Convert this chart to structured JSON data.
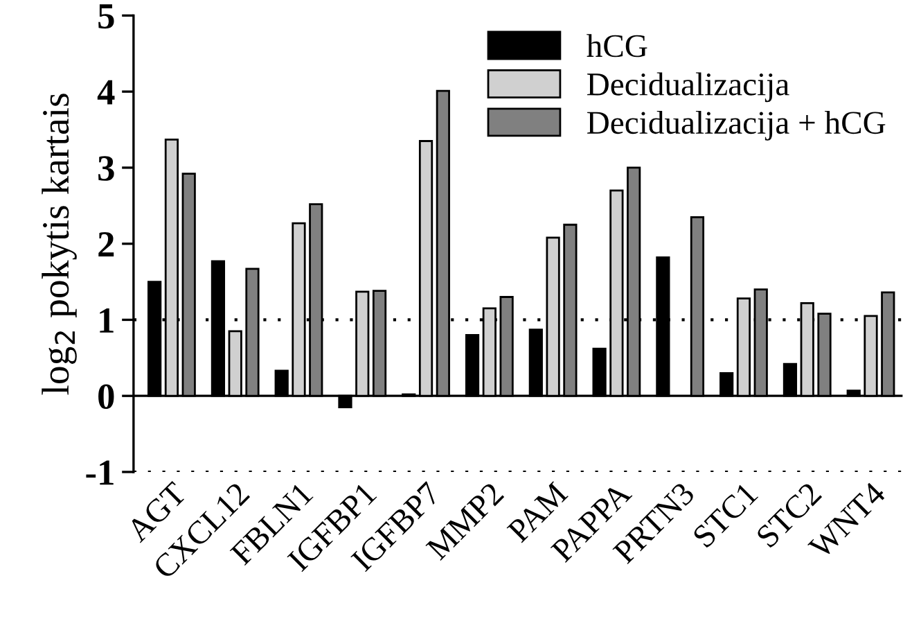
{
  "chart_data": {
    "type": "bar",
    "ylabel": "log$_{2}$ pokytis kartais",
    "categories": [
      "AGT",
      "CXCL12",
      "FBLN1",
      "IGFBP1",
      "IGFBP7",
      "MMP2",
      "PAM",
      "PAPPA",
      "PRTN3",
      "STC1",
      "STC2",
      "WNT4"
    ],
    "series": [
      {
        "name": "hCG",
        "color": "#000000",
        "values": [
          1.5,
          1.77,
          0.33,
          -0.15,
          0.02,
          0.8,
          0.87,
          0.62,
          1.82,
          0.3,
          0.42,
          0.07
        ]
      },
      {
        "name": "Decidualizacija",
        "color": "#d0d0d0",
        "values": [
          3.37,
          0.85,
          2.27,
          1.37,
          3.35,
          1.15,
          2.08,
          2.7,
          null,
          1.28,
          1.22,
          1.05
        ]
      },
      {
        "name": "Decidualizacija + hCG",
        "color": "#808080",
        "values": [
          2.92,
          1.67,
          2.52,
          1.38,
          4.01,
          1.3,
          2.25,
          3.0,
          2.35,
          1.4,
          1.08,
          1.36
        ]
      }
    ],
    "ylim": [
      -1,
      5
    ],
    "yticks": [
      -1,
      0,
      1,
      2,
      3,
      4,
      5
    ],
    "ref_lines": [
      {
        "axis": "y",
        "value": 0,
        "line_style": "solid"
      },
      {
        "axis": "y",
        "value": 1,
        "line_style": "dotted"
      },
      {
        "axis": "y",
        "value": -1,
        "line_style": "dotted"
      }
    ],
    "legend": "top right",
    "grid": false
  }
}
